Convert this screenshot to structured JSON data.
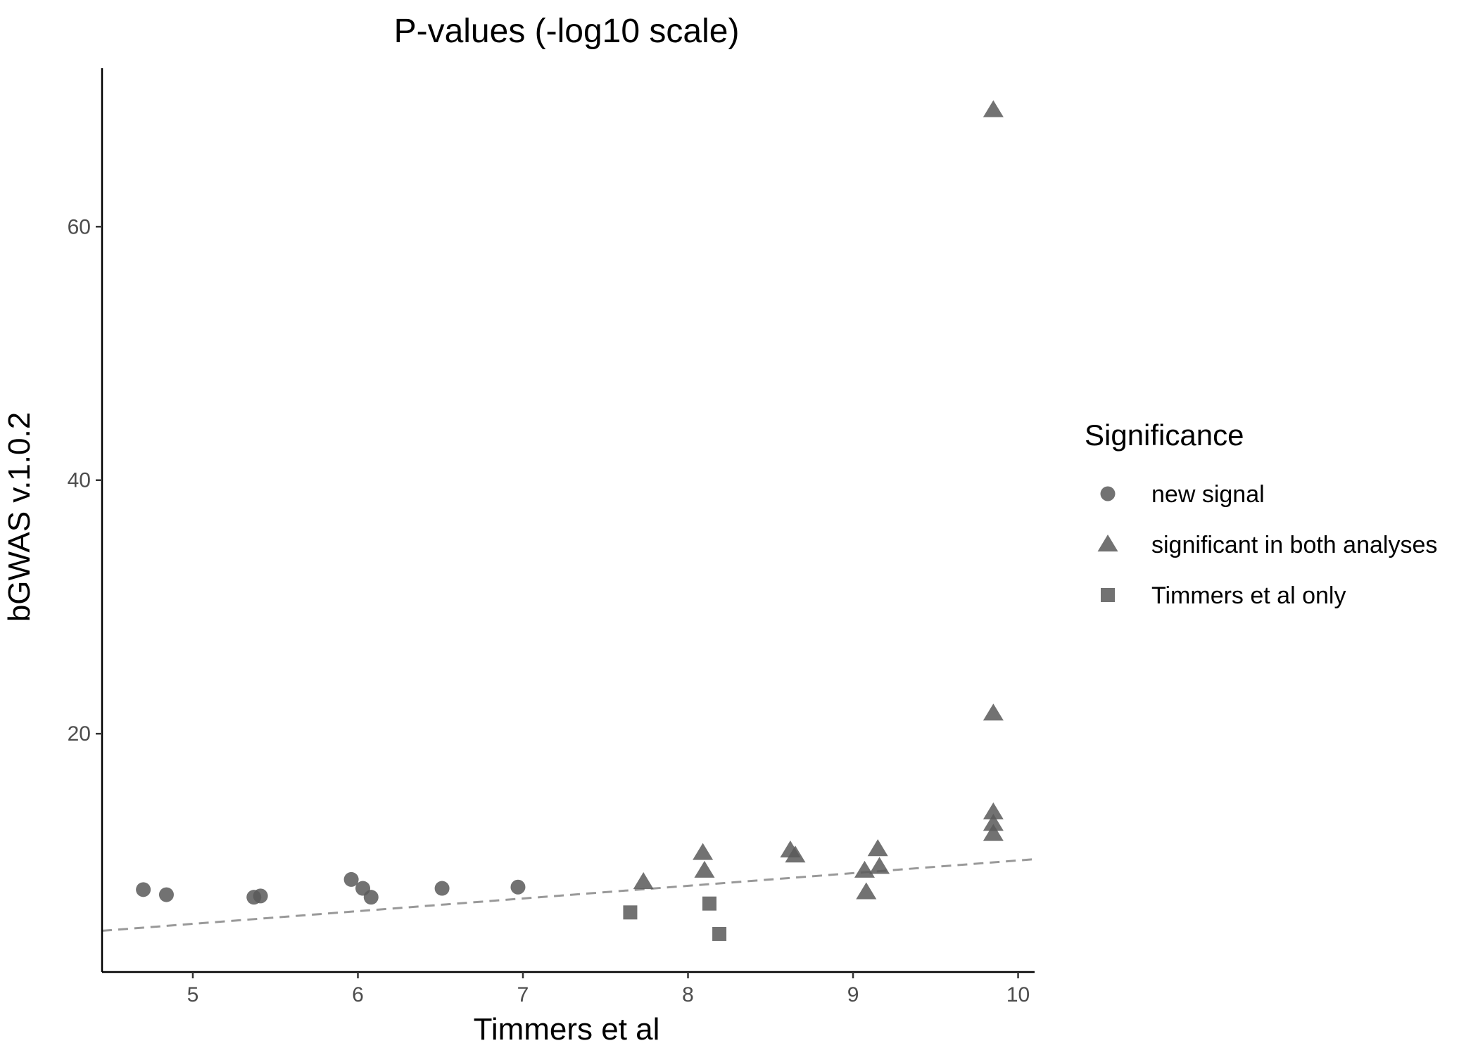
{
  "chart_data": {
    "type": "scatter",
    "title": "P-values (-log10 scale)",
    "xlabel": "Timmers et al",
    "ylabel": "bGWAS v.1.0.2",
    "xlim": [
      4.45,
      10.1
    ],
    "ylim": [
      1.2,
      72.5
    ],
    "x_ticks": [
      "5",
      "6",
      "7",
      "8",
      "9",
      "10"
    ],
    "y_ticks": [
      "20",
      "40",
      "60"
    ],
    "grid": false,
    "point_color": "#595959",
    "point_opacity": 0.85,
    "reference_line": {
      "style": "dashed",
      "color": "#999999",
      "slope": 1,
      "intercept": 0
    },
    "legend": {
      "title": "Significance",
      "position": "right",
      "entries": [
        {
          "label": "new signal",
          "shape": "circle"
        },
        {
          "label": "significant in both analyses",
          "shape": "triangle"
        },
        {
          "label": "Timmers et al only",
          "shape": "square"
        }
      ]
    },
    "series": [
      {
        "name": "new signal",
        "shape": "circle",
        "points": [
          [
            4.7,
            7.7
          ],
          [
            4.84,
            7.3
          ],
          [
            5.37,
            7.1
          ],
          [
            5.41,
            7.2
          ],
          [
            5.96,
            8.5
          ],
          [
            6.03,
            7.8
          ],
          [
            6.08,
            7.1
          ],
          [
            6.51,
            7.8
          ],
          [
            6.97,
            7.9
          ]
        ]
      },
      {
        "name": "significant in both analyses",
        "shape": "triangle",
        "points": [
          [
            7.73,
            8.3
          ],
          [
            8.09,
            10.6
          ],
          [
            8.1,
            9.2
          ],
          [
            8.62,
            10.8
          ],
          [
            8.65,
            10.4
          ],
          [
            9.07,
            9.2
          ],
          [
            9.08,
            7.5
          ],
          [
            9.15,
            10.9
          ],
          [
            9.16,
            9.5
          ],
          [
            9.85,
            69.2
          ],
          [
            9.85,
            21.6
          ],
          [
            9.85,
            13.8
          ],
          [
            9.85,
            12.9
          ],
          [
            9.85,
            12.1
          ]
        ]
      },
      {
        "name": "Timmers et al only",
        "shape": "square",
        "points": [
          [
            7.65,
            5.9
          ],
          [
            8.13,
            6.6
          ],
          [
            8.19,
            4.2
          ]
        ]
      }
    ]
  }
}
